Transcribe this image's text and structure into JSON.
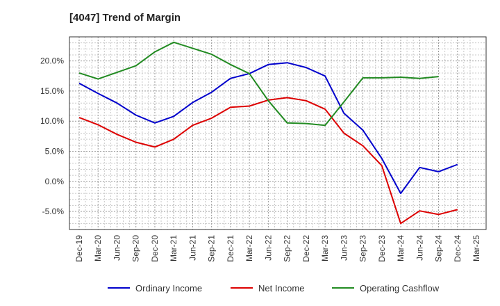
{
  "chart_data": {
    "type": "line",
    "title": "[4047]  Trend of Margin",
    "xlabel": "",
    "ylabel": "",
    "categories": [
      "Dec-19",
      "Mar-20",
      "Jun-20",
      "Sep-20",
      "Dec-20",
      "Mar-21",
      "Jun-21",
      "Sep-21",
      "Dec-21",
      "Mar-22",
      "Jun-22",
      "Sep-22",
      "Dec-22",
      "Mar-23",
      "Jun-23",
      "Sep-23",
      "Dec-23",
      "Mar-24",
      "Jun-24",
      "Sep-24",
      "Dec-24",
      "Mar-25"
    ],
    "y_ticks": [
      "-5.0%",
      "0.0%",
      "5.0%",
      "10.0%",
      "15.0%",
      "20.0%"
    ],
    "ylim": [
      -8,
      24
    ],
    "grid": true,
    "legend_position": "bottom",
    "series": [
      {
        "name": "Ordinary Income",
        "color": "#0000cc",
        "values": [
          16.3,
          14.6,
          13.0,
          11.0,
          9.7,
          10.8,
          13.1,
          14.8,
          17.1,
          17.9,
          19.4,
          19.7,
          18.9,
          17.5,
          11.3,
          8.5,
          3.8,
          -2.0,
          2.3,
          1.6,
          2.8,
          null
        ]
      },
      {
        "name": "Net Income",
        "color": "#dd0000",
        "values": [
          10.6,
          9.4,
          7.8,
          6.5,
          5.7,
          7.0,
          9.3,
          10.5,
          12.3,
          12.5,
          13.5,
          13.9,
          13.4,
          12.0,
          8.0,
          5.9,
          2.6,
          -7.0,
          -4.9,
          -5.5,
          -4.7,
          null
        ]
      },
      {
        "name": "Operating Cashflow",
        "color": "#228b22",
        "values": [
          18.0,
          17.0,
          18.1,
          19.2,
          21.5,
          23.1,
          22.1,
          21.1,
          19.4,
          17.9,
          13.4,
          9.7,
          9.6,
          9.3,
          13.2,
          17.2,
          17.2,
          17.3,
          17.1,
          17.4,
          null,
          null
        ]
      }
    ]
  }
}
